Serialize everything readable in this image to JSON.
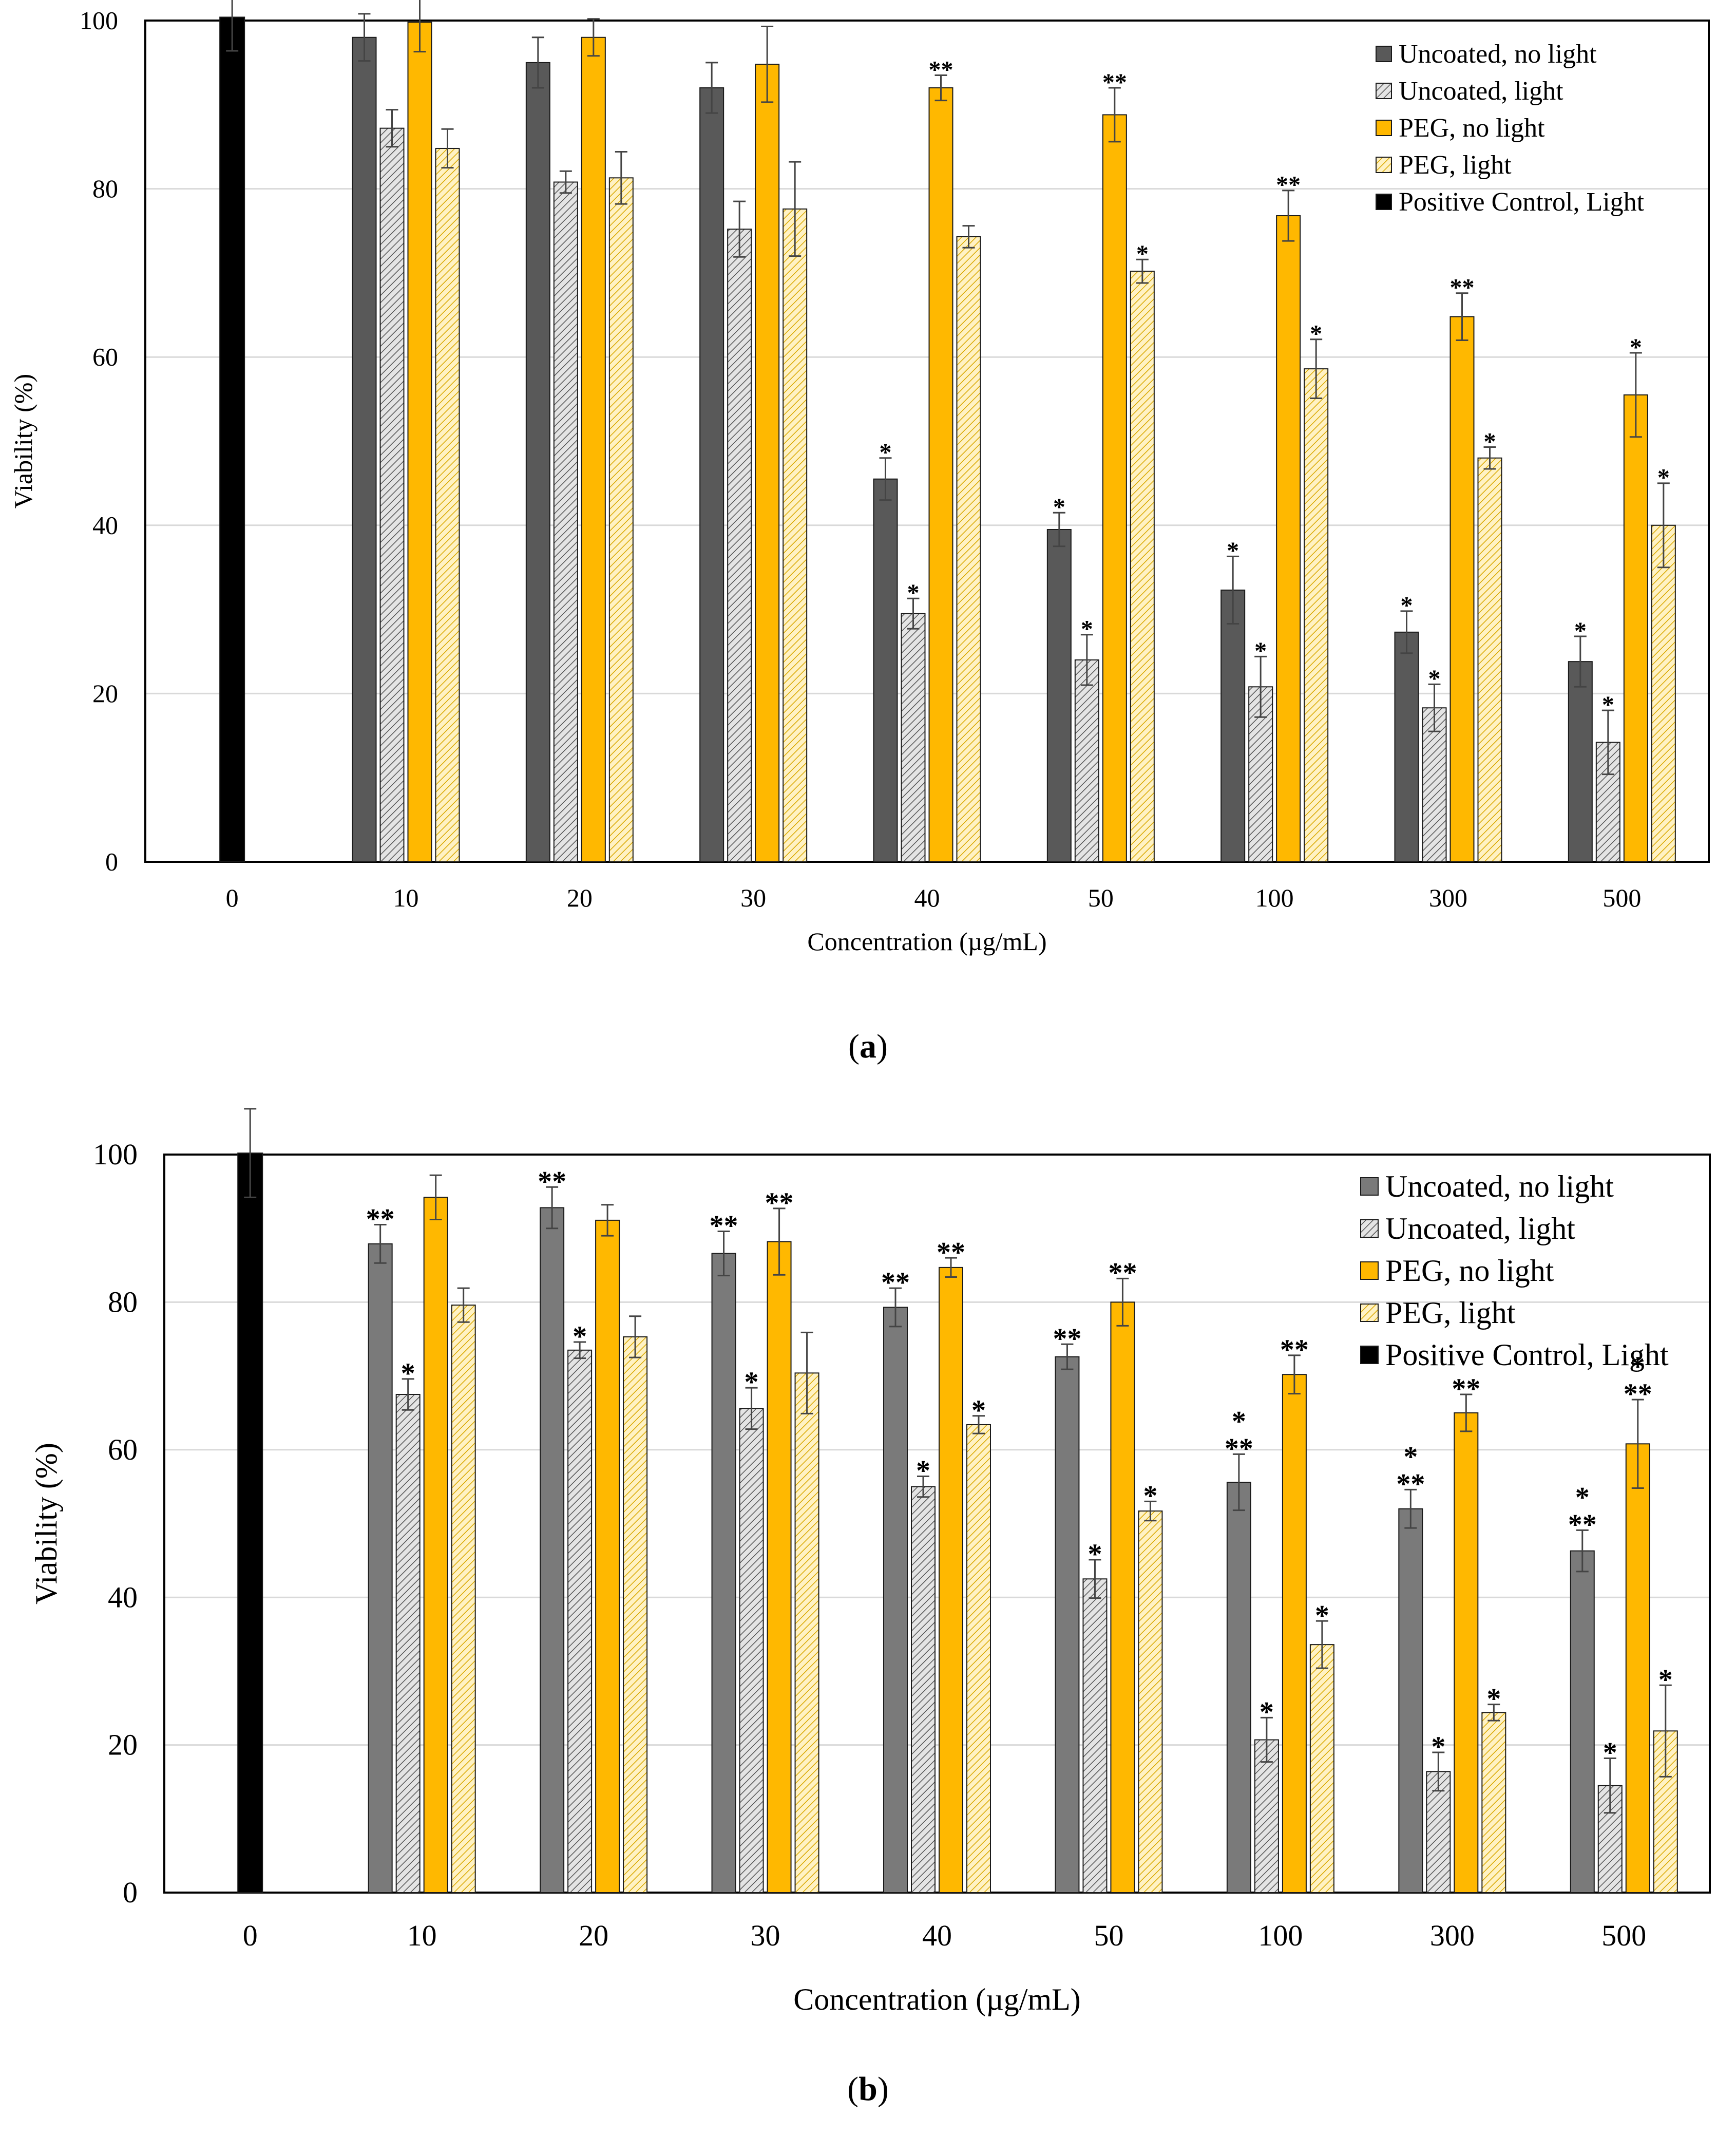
{
  "charts": [
    {
      "chart_data": {
        "type": "bar",
        "panel": "(a)",
        "xlabel": "Concentration (µg/mL)",
        "ylabel": "Viability (%)",
        "ylim": [
          0,
          100
        ],
        "yticks": [
          0,
          20,
          40,
          60,
          80,
          100
        ],
        "grid": true,
        "legend_position": "top-right",
        "categories": [
          "0",
          "10",
          "20",
          "30",
          "40",
          "50",
          "100",
          "300",
          "500"
        ],
        "series": [
          {
            "name": "Uncoated, no light",
            "style": "dark-gray",
            "values": [
              null,
              98,
              95,
              92,
              45.5,
              39.5,
              32.3,
              27.3,
              23.8
            ],
            "errors": [
              null,
              2.8,
              3,
              3,
              2.5,
              2,
              4,
              2.5,
              3
            ],
            "marks": [
              null,
              "",
              "",
              "",
              "*",
              "*",
              "*",
              "*",
              "*"
            ]
          },
          {
            "name": "Uncoated, light",
            "style": "hatched-gray",
            "values": [
              null,
              87.2,
              80.8,
              75.2,
              29.5,
              24,
              20.8,
              18.3,
              14.2
            ],
            "errors": [
              null,
              2.2,
              1.3,
              3.3,
              1.8,
              3,
              3.6,
              2.8,
              3.8
            ],
            "marks": [
              null,
              "",
              "",
              "",
              "*",
              "*",
              "*",
              "*",
              "*"
            ]
          },
          {
            "name": "PEG, no light",
            "style": "orange",
            "values": [
              null,
              99.8,
              98,
              94.8,
              92,
              88.8,
              76.8,
              64.8,
              55.5
            ],
            "errors": [
              null,
              3.5,
              2.2,
              4.5,
              1.5,
              3.2,
              3,
              2.8,
              5
            ],
            "marks": [
              null,
              "",
              "",
              "",
              "**",
              "**",
              "**",
              "**",
              "*"
            ]
          },
          {
            "name": "PEG, light",
            "style": "hatched-yellow",
            "values": [
              null,
              84.8,
              81.3,
              77.6,
              74.3,
              70.2,
              58.6,
              48,
              40
            ],
            "errors": [
              null,
              2.3,
              3.1,
              5.6,
              1.3,
              1.4,
              3.5,
              1.3,
              5
            ],
            "marks": [
              null,
              "",
              "",
              "",
              "",
              "*",
              "*",
              "*",
              "*"
            ]
          },
          {
            "name": "Positive Control, Light",
            "style": "black",
            "values": [
              100.4,
              null,
              null,
              null,
              null,
              null,
              null,
              null,
              null
            ],
            "errors": [
              4,
              null,
              null,
              null,
              null,
              null,
              null,
              null,
              null
            ],
            "marks": [
              "",
              null,
              null,
              null,
              null,
              null,
              null,
              null,
              null
            ]
          }
        ],
        "colors": {
          "dark": "#595959",
          "hatched_gray_bg": "#e4e4e4",
          "hatched_gray_line": "#555555",
          "orange": "#ffb800",
          "hatched_yellow_bg": "#fff2c4",
          "hatched_yellow_line": "#d9a800",
          "black": "#000000",
          "grid": "#d9d9d9"
        }
      }
    },
    {
      "chart_data": {
        "type": "bar",
        "panel": "(b)",
        "xlabel": "Concentration (µg/mL)",
        "ylabel": "Viability (%)",
        "ylim": [
          0,
          100
        ],
        "yticks": [
          0,
          20,
          40,
          60,
          80,
          100
        ],
        "grid": true,
        "legend_position": "top-right",
        "categories": [
          "0",
          "10",
          "20",
          "30",
          "40",
          "50",
          "100",
          "300",
          "500"
        ],
        "series": [
          {
            "name": "Uncoated, no light",
            "style": "dark-gray",
            "values": [
              null,
              87.9,
              92.8,
              86.6,
              79.3,
              72.6,
              55.6,
              52,
              46.3
            ],
            "errors": [
              null,
              2.6,
              2.8,
              3,
              2.6,
              1.7,
              3.8,
              2.6,
              2.8
            ],
            "marks": [
              null,
              "**",
              "**",
              "**",
              "**",
              "**",
              "*\n**",
              "*\n**",
              "*\n**"
            ]
          },
          {
            "name": "Uncoated, light",
            "style": "hatched-gray",
            "values": [
              null,
              67.5,
              73.5,
              65.6,
              55,
              42.5,
              20.7,
              16.4,
              14.5
            ],
            "errors": [
              null,
              2.1,
              1.1,
              2.8,
              1.4,
              2.6,
              3,
              2.6,
              3.7
            ],
            "marks": [
              null,
              "*",
              "*",
              "*",
              "*",
              "*",
              "*",
              "*",
              "*"
            ]
          },
          {
            "name": "PEG, no light",
            "style": "orange",
            "values": [
              null,
              94.2,
              91.1,
              88.2,
              84.7,
              80,
              70.2,
              65,
              60.8
            ],
            "errors": [
              null,
              3,
              2.1,
              4.5,
              1.3,
              3.2,
              2.6,
              2.5,
              6
            ],
            "marks": [
              null,
              "",
              "",
              "**",
              "**",
              "**",
              "**",
              "**",
              "*\n**"
            ]
          },
          {
            "name": "PEG, light",
            "style": "hatched-yellow",
            "values": [
              null,
              79.6,
              75.3,
              70.4,
              63.4,
              51.7,
              33.6,
              24.4,
              21.9
            ],
            "errors": [
              null,
              2.3,
              2.8,
              5.5,
              1.2,
              1.3,
              3.2,
              1.1,
              6.2
            ],
            "marks": [
              null,
              "",
              "",
              "",
              "*",
              "*",
              "*",
              "*",
              "*"
            ]
          },
          {
            "name": "Positive Control, Light",
            "style": "black",
            "values": [
              100.2,
              null,
              null,
              null,
              null,
              null,
              null,
              null,
              null
            ],
            "errors": [
              6,
              null,
              null,
              null,
              null,
              null,
              null,
              null,
              null
            ],
            "marks": [
              "",
              null,
              null,
              null,
              null,
              null,
              null,
              null,
              null
            ]
          }
        ],
        "colors": {
          "dark": "#7a7a7a",
          "hatched_gray_bg": "#e4e4e4",
          "hatched_gray_line": "#555555",
          "orange": "#ffb800",
          "hatched_yellow_bg": "#fff2c4",
          "hatched_yellow_line": "#d9a800",
          "black": "#000000",
          "grid": "#d9d9d9"
        }
      }
    }
  ],
  "captions": {
    "a": "a",
    "b": "b"
  }
}
